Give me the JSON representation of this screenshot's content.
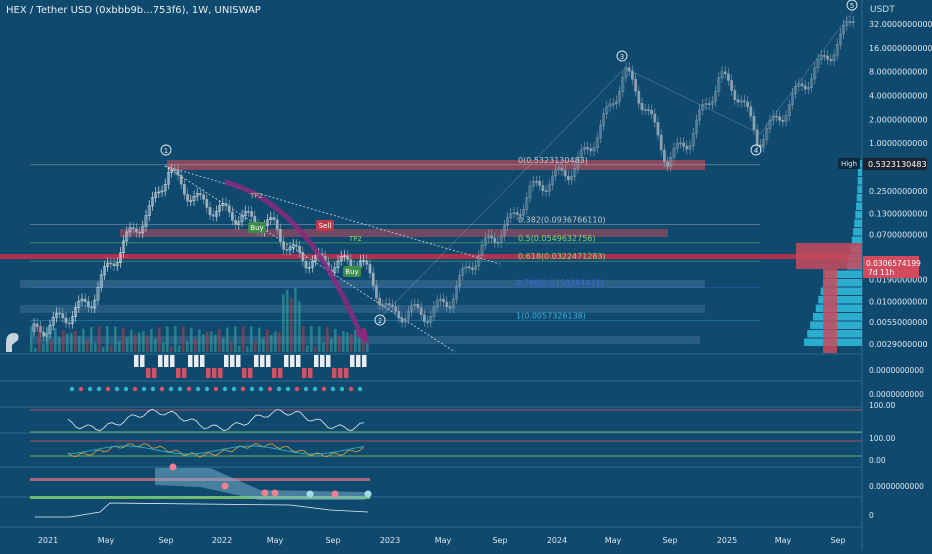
{
  "header": {
    "title": "HEX / Tether USD (0xbbb9b...753f6), 1W, UNISWAP",
    "currency": "USDT"
  },
  "colors": {
    "background": "#0f4a6e",
    "candle": "#c8d4dc",
    "bear_candle": "#e05a6a",
    "bull_candle": "#2fb8c8",
    "arrow_purple": "#8a2a7c",
    "fib_green": "#88d36f",
    "fib_red": "#e35061",
    "fib_blue": "#3ab0e0",
    "zone_red": "#b04a5c"
  },
  "chart_data": {
    "type": "candlestick",
    "scale": "log",
    "y_ticks": [
      "32.0000000000",
      "16.0000000000",
      "8.0000000000",
      "4.0000000000",
      "2.0000000000",
      "1.0000000000",
      "0.5323130483",
      "0.2500000000",
      "0.1300000000",
      "0.0700000000",
      "0.0306574199",
      "0.0190000000",
      "0.0100000000",
      "0.0055000000",
      "0.0029000000"
    ],
    "y_tick_values": [
      32,
      16,
      8,
      4,
      2,
      1,
      0.5323130483,
      0.25,
      0.13,
      0.07,
      0.0306574199,
      0.019,
      0.01,
      0.0055,
      0.0029
    ],
    "x_labels": [
      "2021",
      "May",
      "Sep",
      "2022",
      "May",
      "Sep",
      "2023",
      "May",
      "Sep",
      "2024",
      "May",
      "Sep",
      "2025",
      "May",
      "Sep"
    ],
    "high_label": "High",
    "high_value": "0.5323130483",
    "last_price": "0.0306574199",
    "countdown": "7d 11h",
    "fib_levels": [
      {
        "label": "0(0.5323130483)",
        "value": 0.5323130483,
        "color": "#c8c8c8"
      },
      {
        "label": "0.382(0.0936766110)",
        "value": 0.093676611,
        "color": "#c8c8c8"
      },
      {
        "label": "0.5(0.0549632756)",
        "value": 0.0549632756,
        "color": "#88d36f"
      },
      {
        "label": "0.618(0.0322471283)",
        "value": 0.0322471283,
        "color": "#88d36f"
      },
      {
        "label": "0.786(0.0150284411)",
        "value": 0.0150284411,
        "color": "#3a6fe0"
      },
      {
        "label": "1(0.0057326138)",
        "value": 0.0057326138,
        "color": "#3ab0e0"
      }
    ],
    "wave_labels": [
      "1",
      "2",
      "3",
      "4",
      "5"
    ],
    "signals": {
      "buy": "Buy",
      "sell": "Sell",
      "tp": "TP2"
    },
    "indicator_ticks": [
      "0.0000000000",
      "0.0000000000",
      "100.00",
      "100.00",
      "0.00",
      "0.0000000000",
      "0"
    ]
  }
}
